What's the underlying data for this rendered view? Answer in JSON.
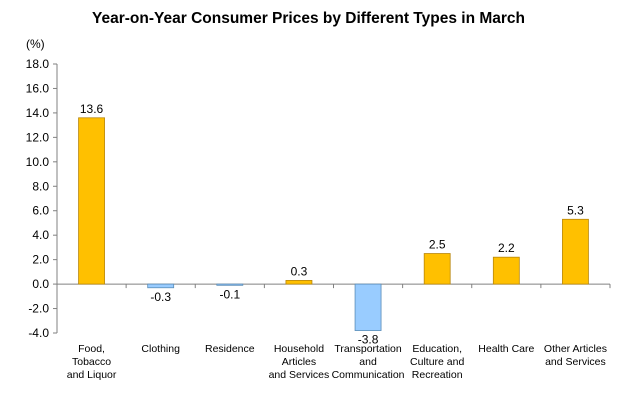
{
  "chart_data": {
    "type": "bar",
    "title": "Year-on-Year Consumer Prices by Different Types in March",
    "unit_label": "(%)",
    "categories": [
      [
        "Food,",
        "Tobacco",
        "and Liquor"
      ],
      [
        "Clothing"
      ],
      [
        "Residence"
      ],
      [
        "Household",
        "Articles",
        "and Services"
      ],
      [
        "Transportation",
        "and",
        "Communication"
      ],
      [
        "Education,",
        "Culture and",
        "Recreation"
      ],
      [
        "Health Care"
      ],
      [
        "Other Articles",
        "and Services"
      ]
    ],
    "values": [
      13.6,
      -0.3,
      -0.1,
      0.3,
      -3.8,
      2.5,
      2.2,
      5.3
    ],
    "value_labels": [
      "13.6",
      "-0.3",
      "-0.1",
      "0.3",
      "-3.8",
      "2.5",
      "2.2",
      "5.3"
    ],
    "ylim": [
      -4.0,
      18.0
    ],
    "yticks": [
      18.0,
      16.0,
      14.0,
      12.0,
      10.0,
      8.0,
      6.0,
      4.0,
      2.0,
      0.0,
      -2.0,
      -4.0
    ],
    "ytick_labels": [
      "18.0",
      "16.0",
      "14.0",
      "12.0",
      "10.0",
      "8.0",
      "6.0",
      "4.0",
      "2.0",
      "0.0",
      "-2.0",
      "-4.0"
    ],
    "grid": false,
    "legend": "none",
    "colors": {
      "positive": "#FFC000",
      "positive_border": "#B8860B",
      "negative": "#99CCFF",
      "negative_border": "#5B8DB8",
      "axis": "#808080"
    }
  }
}
